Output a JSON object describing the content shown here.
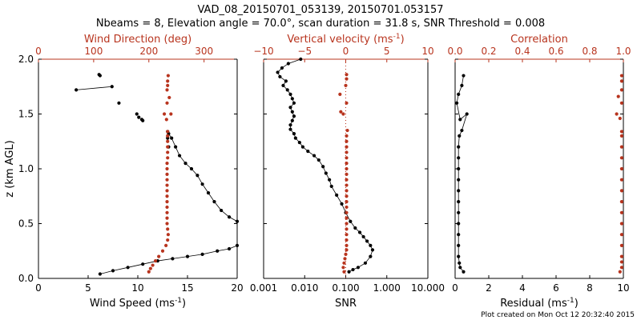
{
  "chart_data": {
    "type": "scatter",
    "title": "VAD_08_20150701_053139, 20150701.053157",
    "subtitle": "Nbeams = 8, Elevation angle = 70.0°, scan duration = 31.8 s, SNR Threshold = 0.008",
    "footer": "Plot created on Mon Oct 12 20:32:40 2015",
    "colors": {
      "primary": "#000000",
      "secondary": "#b8341e"
    },
    "ylabel": "z (km AGL)",
    "ylim": [
      0,
      2.0
    ],
    "yticks": [
      0.0,
      0.5,
      1.0,
      1.5,
      2.0
    ],
    "ytick_labels": [
      "0.0",
      "0.5",
      "1.0",
      "1.5",
      "2.0"
    ],
    "panels": [
      {
        "bottom": {
          "label_text": "Wind Speed (ms",
          "label_sup": "-1",
          "label_suffix": ")",
          "range": [
            0,
            20
          ],
          "ticks": [
            0,
            5,
            10,
            15,
            20
          ],
          "tick_labels": [
            "0",
            "5",
            "10",
            "15",
            "20"
          ],
          "scale": "linear"
        },
        "top": {
          "label_text": "Wind Direction (deg)",
          "range": [
            0,
            360
          ],
          "ticks": [
            0,
            100,
            200,
            300
          ],
          "tick_labels": [
            "0",
            "100",
            "200",
            "300"
          ],
          "scale": "linear"
        },
        "series": [
          {
            "axis": "bottom",
            "color": "black",
            "connect": "segments",
            "points": [
              [
                6.2,
                0.04
              ],
              [
                7.5,
                0.07
              ],
              [
                9,
                0.1
              ],
              [
                10.5,
                0.13
              ],
              [
                12,
                0.16
              ],
              [
                13.5,
                0.18
              ],
              [
                15,
                0.2
              ],
              [
                16.5,
                0.22
              ],
              [
                18,
                0.25
              ],
              [
                19.2,
                0.27
              ],
              [
                20,
                0.3
              ],
              [
                20,
                0.52
              ],
              [
                19.2,
                0.56
              ],
              [
                18.4,
                0.62
              ],
              [
                17.7,
                0.7
              ],
              [
                17.1,
                0.78
              ],
              [
                16.5,
                0.86
              ],
              [
                16,
                0.94
              ],
              [
                15.4,
                1.0
              ],
              [
                14.8,
                1.05
              ],
              [
                14.2,
                1.12
              ],
              [
                13.8,
                1.2
              ],
              [
                13.4,
                1.28
              ],
              [
                13.1,
                1.32
              ],
              [
                13,
                1.34
              ],
              [
                13,
                1.28
              ],
              [
                13.1,
                1.2
              ],
              [
                6.2,
                1.85
              ],
              [
                6.1,
                1.86
              ],
              [
                3.8,
                1.72
              ],
              [
                7.4,
                1.75
              ],
              [
                8.1,
                1.6
              ],
              [
                9.9,
                1.5
              ],
              [
                10.1,
                1.47
              ],
              [
                10.4,
                1.45
              ],
              [
                10.5,
                1.44
              ]
            ],
            "segments": [
              [
                0,
                10
              ],
              [
                11,
                24
              ],
              [
                29,
                30
              ]
            ]
          },
          {
            "axis": "top",
            "color": "red",
            "connect": "none",
            "points": [
              [
                200,
                0.06
              ],
              [
                203,
                0.09
              ],
              [
                207,
                0.12
              ],
              [
                212,
                0.16
              ],
              [
                218,
                0.2
              ],
              [
                225,
                0.25
              ],
              [
                231,
                0.3
              ],
              [
                234,
                0.35
              ],
              [
                235,
                0.4
              ],
              [
                234,
                0.45
              ],
              [
                233,
                0.5
              ],
              [
                233,
                0.55
              ],
              [
                233,
                0.6
              ],
              [
                233,
                0.65
              ],
              [
                233,
                0.7
              ],
              [
                233,
                0.75
              ],
              [
                233,
                0.8
              ],
              [
                233,
                0.85
              ],
              [
                233,
                0.9
              ],
              [
                233,
                0.95
              ],
              [
                233,
                1.0
              ],
              [
                233,
                1.05
              ],
              [
                234,
                1.1
              ],
              [
                234,
                1.15
              ],
              [
                234,
                1.2
              ],
              [
                234,
                1.25
              ],
              [
                234,
                1.3
              ],
              [
                234,
                1.34
              ],
              [
                232,
                1.45
              ],
              [
                228,
                1.5
              ],
              [
                240,
                1.5
              ],
              [
                233,
                1.6
              ],
              [
                237,
                1.65
              ],
              [
                233,
                1.72
              ],
              [
                234,
                1.76
              ],
              [
                234,
                1.8
              ],
              [
                235,
                1.85
              ]
            ]
          }
        ]
      },
      {
        "bottom": {
          "label_text": "SNR",
          "range": [
            0.001,
            10
          ],
          "ticks": [
            0.001,
            0.01,
            0.1,
            1,
            10
          ],
          "tick_labels": [
            "0.001",
            "0.010",
            "0.100",
            "1.000",
            "10.000"
          ],
          "scale": "log"
        },
        "top": {
          "label_text": "Vertical velocity (ms",
          "label_sup": "-1",
          "label_suffix": ")",
          "range": [
            -10,
            10
          ],
          "ticks": [
            -10,
            -5,
            0,
            5,
            10
          ],
          "tick_labels": [
            "−10",
            "−5",
            "0",
            "5",
            "10"
          ],
          "scale": "linear"
        },
        "series": [
          {
            "axis": "bottom",
            "color": "black",
            "connect": "line",
            "points": [
              [
                0.12,
                0.06
              ],
              [
                0.15,
                0.08
              ],
              [
                0.2,
                0.1
              ],
              [
                0.3,
                0.14
              ],
              [
                0.4,
                0.2
              ],
              [
                0.45,
                0.26
              ],
              [
                0.4,
                0.3
              ],
              [
                0.33,
                0.34
              ],
              [
                0.27,
                0.38
              ],
              [
                0.22,
                0.42
              ],
              [
                0.17,
                0.46
              ],
              [
                0.13,
                0.52
              ],
              [
                0.1,
                0.6
              ],
              [
                0.08,
                0.68
              ],
              [
                0.06,
                0.76
              ],
              [
                0.045,
                0.84
              ],
              [
                0.04,
                0.9
              ],
              [
                0.033,
                0.96
              ],
              [
                0.028,
                1.02
              ],
              [
                0.022,
                1.08
              ],
              [
                0.017,
                1.12
              ],
              [
                0.012,
                1.16
              ],
              [
                0.009,
                1.2
              ],
              [
                0.0075,
                1.24
              ],
              [
                0.006,
                1.28
              ],
              [
                0.0055,
                1.32
              ],
              [
                0.0045,
                1.36
              ],
              [
                0.0045,
                1.4
              ],
              [
                0.005,
                1.44
              ],
              [
                0.0055,
                1.48
              ],
              [
                0.005,
                1.52
              ],
              [
                0.0045,
                1.56
              ],
              [
                0.0055,
                1.6
              ],
              [
                0.005,
                1.64
              ],
              [
                0.0045,
                1.68
              ],
              [
                0.0038,
                1.72
              ],
              [
                0.003,
                1.76
              ],
              [
                0.0035,
                1.8
              ],
              [
                0.0025,
                1.84
              ],
              [
                0.0022,
                1.88
              ],
              [
                0.0028,
                1.92
              ],
              [
                0.004,
                1.96
              ],
              [
                0.008,
                2.0
              ]
            ]
          },
          {
            "axis": "top",
            "color": "red",
            "connect": "none",
            "points": [
              [
                -0.2,
                0.06
              ],
              [
                -0.3,
                0.1
              ],
              [
                -0.2,
                0.14
              ],
              [
                -0.1,
                0.18
              ],
              [
                0,
                0.22
              ],
              [
                0.1,
                0.26
              ],
              [
                0.1,
                0.3
              ],
              [
                0.1,
                0.35
              ],
              [
                0.1,
                0.4
              ],
              [
                0.1,
                0.45
              ],
              [
                0.1,
                0.5
              ],
              [
                0.1,
                0.55
              ],
              [
                0.1,
                0.6
              ],
              [
                0.1,
                0.65
              ],
              [
                0.1,
                0.7
              ],
              [
                0.1,
                0.75
              ],
              [
                0.1,
                0.8
              ],
              [
                0.1,
                0.85
              ],
              [
                0.1,
                0.9
              ],
              [
                0.1,
                0.95
              ],
              [
                0.1,
                1.0
              ],
              [
                0.1,
                1.05
              ],
              [
                0.1,
                1.1
              ],
              [
                0.1,
                1.15
              ],
              [
                0.1,
                1.2
              ],
              [
                0.1,
                1.25
              ],
              [
                0.1,
                1.3
              ],
              [
                0.2,
                1.35
              ],
              [
                -0.3,
                1.5
              ],
              [
                -0.6,
                1.52
              ],
              [
                0.1,
                1.6
              ],
              [
                -0.7,
                1.68
              ],
              [
                0,
                1.76
              ],
              [
                0.1,
                1.82
              ],
              [
                0.1,
                1.86
              ]
            ]
          }
        ]
      },
      {
        "bottom": {
          "label_text": "Residual (ms",
          "label_sup": "-1",
          "label_suffix": ")",
          "range": [
            0,
            10
          ],
          "ticks": [
            0,
            2,
            4,
            6,
            8,
            10
          ],
          "tick_labels": [
            "0",
            "2",
            "4",
            "6",
            "8",
            "10"
          ],
          "scale": "linear"
        },
        "top": {
          "label_text": "Correlation",
          "range": [
            0,
            1
          ],
          "ticks": [
            0,
            0.2,
            0.4,
            0.6,
            0.8,
            1.0
          ],
          "tick_labels": [
            "0.0",
            "0.2",
            "0.4",
            "0.6",
            "0.8",
            "1.0"
          ],
          "scale": "linear"
        },
        "series": [
          {
            "axis": "bottom",
            "color": "black",
            "connect": "line",
            "points": [
              [
                0.5,
                0.06
              ],
              [
                0.3,
                0.1
              ],
              [
                0.25,
                0.14
              ],
              [
                0.2,
                0.2
              ],
              [
                0.2,
                0.3
              ],
              [
                0.2,
                0.4
              ],
              [
                0.2,
                0.5
              ],
              [
                0.2,
                0.6
              ],
              [
                0.2,
                0.7
              ],
              [
                0.2,
                0.8
              ],
              [
                0.2,
                0.9
              ],
              [
                0.2,
                1.0
              ],
              [
                0.2,
                1.1
              ],
              [
                0.2,
                1.2
              ],
              [
                0.25,
                1.3
              ],
              [
                0.4,
                1.35
              ],
              [
                0.7,
                1.5
              ],
              [
                0.3,
                1.45
              ],
              [
                0.1,
                1.6
              ],
              [
                0.2,
                1.68
              ],
              [
                0.4,
                1.76
              ],
              [
                0.5,
                1.85
              ]
            ]
          },
          {
            "axis": "top",
            "color": "red",
            "connect": "none",
            "points": [
              [
                0.98,
                0.06
              ],
              [
                0.99,
                0.1
              ],
              [
                0.99,
                0.15
              ],
              [
                0.99,
                0.2
              ],
              [
                0.99,
                0.3
              ],
              [
                0.99,
                0.4
              ],
              [
                0.99,
                0.5
              ],
              [
                0.99,
                0.6
              ],
              [
                0.99,
                0.7
              ],
              [
                0.99,
                0.8
              ],
              [
                0.99,
                0.9
              ],
              [
                0.99,
                1.0
              ],
              [
                0.99,
                1.1
              ],
              [
                0.99,
                1.2
              ],
              [
                0.99,
                1.3
              ],
              [
                0.99,
                1.34
              ],
              [
                0.96,
                1.5
              ],
              [
                0.98,
                1.46
              ],
              [
                0.99,
                1.6
              ],
              [
                0.97,
                1.66
              ],
              [
                0.99,
                1.72
              ],
              [
                0.99,
                1.8
              ],
              [
                0.99,
                1.85
              ]
            ]
          }
        ]
      }
    ]
  }
}
